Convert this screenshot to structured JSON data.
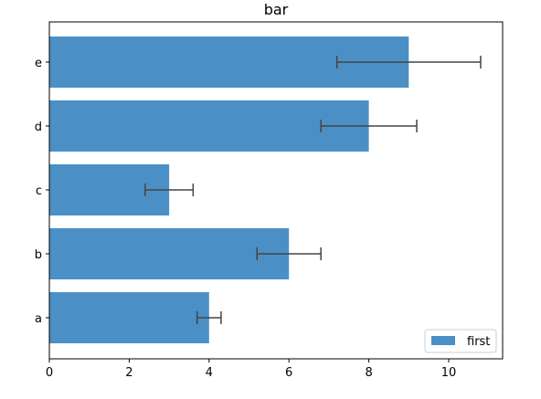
{
  "chart_data": {
    "type": "bar",
    "orientation": "horizontal",
    "title": "bar",
    "xlabel": "",
    "ylabel": "",
    "categories": [
      "a",
      "b",
      "c",
      "d",
      "e"
    ],
    "series": [
      {
        "name": "first",
        "values": [
          4,
          6,
          3,
          8,
          9
        ],
        "errors": [
          0.3,
          0.8,
          0.6,
          1.2,
          1.8
        ],
        "color": "#4a90c6"
      }
    ],
    "xlim": [
      0,
      11.35
    ],
    "xticks": [
      0,
      2,
      4,
      6,
      8,
      10
    ],
    "xtick_labels": [
      "0",
      "2",
      "4",
      "6",
      "8",
      "10"
    ],
    "error_color": "#444444",
    "grid": false,
    "legend_position": "lower-right"
  }
}
